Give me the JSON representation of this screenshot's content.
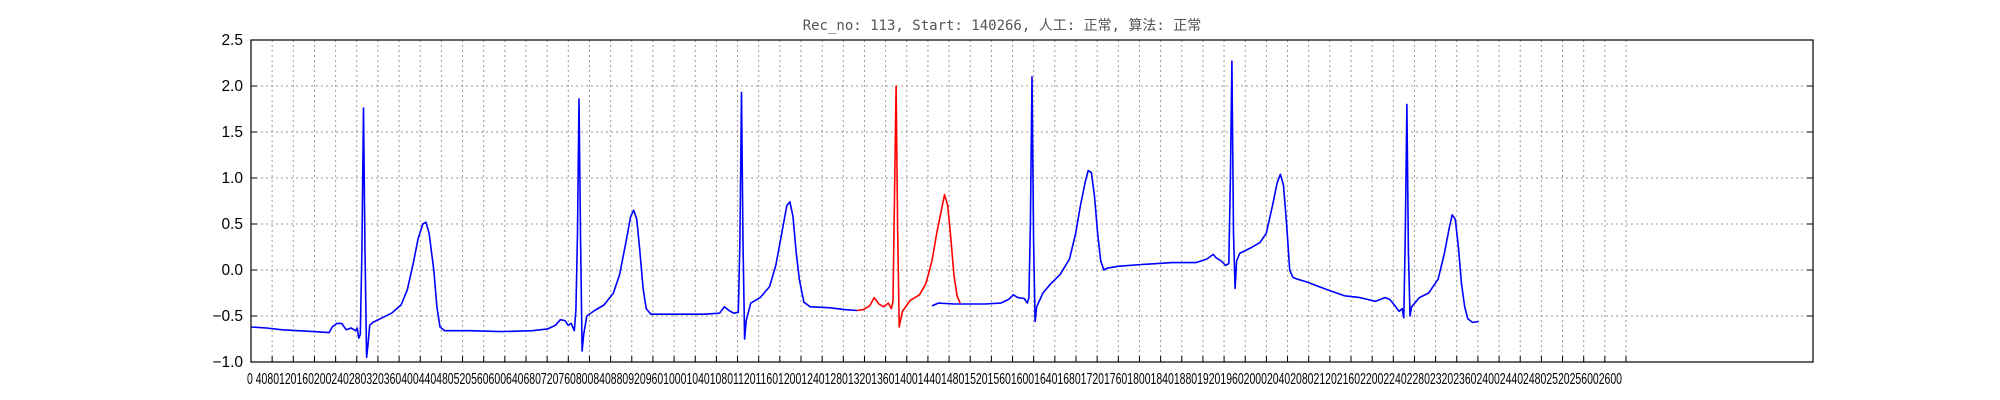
{
  "chart_data": {
    "type": "line",
    "title": "Rec_no: 113, Start: 140266, 人工: 正常, 算法: 正常",
    "xlabel": "",
    "ylabel": "",
    "xlim": [
      0,
      1000
    ],
    "ylim": [
      -1.0,
      2.5
    ],
    "grid": true,
    "y_ticks": [
      {
        "v": -1.0,
        "label": "−1.0"
      },
      {
        "v": -0.5,
        "label": "−0.5"
      },
      {
        "v": 0.0,
        "label": "0.0"
      },
      {
        "v": 0.5,
        "label": "0.5"
      },
      {
        "v": 1.0,
        "label": "1.0"
      },
      {
        "v": 1.5,
        "label": "1.5"
      },
      {
        "v": 2.0,
        "label": "2.0"
      },
      {
        "v": 2.5,
        "label": "2.5"
      }
    ],
    "x_ticks": [
      0,
      40,
      80,
      120,
      160,
      200,
      240,
      280,
      320,
      360,
      400,
      440,
      480,
      520,
      560,
      600,
      640,
      680,
      720,
      760,
      800,
      840,
      880,
      920,
      960,
      1000,
      1040,
      1080,
      1120,
      1160,
      1200,
      1240,
      1280,
      1320,
      1360,
      1400,
      1440,
      1480,
      1520,
      1560,
      1600,
      1640,
      1680,
      1720,
      1760,
      1800,
      1840,
      1880,
      1920,
      1960,
      2000,
      2040,
      2080,
      2120,
      2160,
      2200,
      2240,
      2280,
      2320,
      2360,
      2400,
      2440,
      2480,
      2520,
      2560,
      2600
    ],
    "x_tick_text": "0 4080120160200240280320360400440480520560600640680720760800840880920960100010401080112011601200124012801320136014001440148015201560160016401680172017601800184018801920196020002040208021202160220022402280232023602400244024802520256002600",
    "series": [
      {
        "color": "#0000ff",
        "segments": [
          [
            [
              0,
              -0.62
            ],
            [
              10,
              -0.63
            ],
            [
              20,
              -0.65
            ],
            [
              30,
              -0.66
            ],
            [
              40,
              -0.67
            ],
            [
              50,
              -0.68
            ],
            [
              52,
              -0.62
            ],
            [
              55,
              -0.58
            ],
            [
              58,
              -0.58
            ],
            [
              61,
              -0.65
            ],
            [
              64,
              -0.63
            ],
            [
              67,
              -0.66
            ],
            [
              68,
              -0.63
            ],
            [
              69,
              -0.74
            ],
            [
              70,
              -0.7
            ],
            [
              71,
              0.2
            ],
            [
              72,
              1.76
            ],
            [
              73,
              0.2
            ],
            [
              74,
              -0.95
            ],
            [
              75,
              -0.8
            ],
            [
              76,
              -0.6
            ],
            [
              78,
              -0.57
            ],
            [
              84,
              -0.52
            ],
            [
              90,
              -0.47
            ],
            [
              96,
              -0.38
            ],
            [
              100,
              -0.22
            ],
            [
              104,
              0.08
            ],
            [
              107,
              0.34
            ],
            [
              110,
              0.5
            ],
            [
              112,
              0.52
            ],
            [
              114,
              0.4
            ],
            [
              117,
              0.0
            ],
            [
              119,
              -0.4
            ],
            [
              121,
              -0.62
            ],
            [
              124,
              -0.66
            ],
            [
              140,
              -0.66
            ],
            [
              160,
              -0.67
            ],
            [
              180,
              -0.66
            ],
            [
              190,
              -0.64
            ],
            [
              195,
              -0.6
            ],
            [
              198,
              -0.54
            ],
            [
              201,
              -0.55
            ],
            [
              203,
              -0.6
            ],
            [
              205,
              -0.58
            ],
            [
              207,
              -0.66
            ],
            [
              208,
              -0.44
            ],
            [
              209,
              0.4
            ],
            [
              210,
              1.86
            ],
            [
              211,
              0.3
            ],
            [
              212,
              -0.88
            ],
            [
              213,
              -0.7
            ],
            [
              215,
              -0.5
            ],
            [
              220,
              -0.44
            ],
            [
              226,
              -0.38
            ],
            [
              232,
              -0.25
            ],
            [
              236,
              -0.05
            ],
            [
              240,
              0.3
            ],
            [
              243,
              0.58
            ],
            [
              245,
              0.65
            ],
            [
              247,
              0.55
            ],
            [
              249,
              0.2
            ],
            [
              251,
              -0.2
            ],
            [
              253,
              -0.42
            ],
            [
              256,
              -0.48
            ],
            [
              270,
              -0.48
            ],
            [
              290,
              -0.48
            ],
            [
              300,
              -0.47
            ],
            [
              303,
              -0.4
            ],
            [
              306,
              -0.44
            ],
            [
              309,
              -0.47
            ],
            [
              312,
              -0.46
            ],
            [
              313,
              0.3
            ],
            [
              314,
              1.93
            ],
            [
              315,
              0.3
            ],
            [
              316,
              -0.75
            ],
            [
              317,
              -0.55
            ],
            [
              320,
              -0.36
            ],
            [
              326,
              -0.3
            ],
            [
              332,
              -0.18
            ],
            [
              336,
              0.05
            ],
            [
              340,
              0.42
            ],
            [
              343,
              0.7
            ],
            [
              345,
              0.74
            ],
            [
              347,
              0.58
            ],
            [
              349,
              0.2
            ],
            [
              351,
              -0.1
            ],
            [
              354,
              -0.35
            ],
            [
              358,
              -0.4
            ],
            [
              370,
              -0.41
            ],
            [
              380,
              -0.43
            ],
            [
              388,
              -0.44
            ]
          ],
          [
            [
              436,
              -0.39
            ],
            [
              440,
              -0.36
            ],
            [
              450,
              -0.37
            ],
            [
              460,
              -0.37
            ],
            [
              470,
              -0.37
            ],
            [
              480,
              -0.36
            ],
            [
              485,
              -0.32
            ],
            [
              488,
              -0.27
            ],
            [
              491,
              -0.3
            ],
            [
              495,
              -0.31
            ],
            [
              497,
              -0.36
            ],
            [
              498,
              -0.3
            ],
            [
              499,
              0.5
            ],
            [
              500,
              2.1
            ],
            [
              501,
              0.3
            ],
            [
              502,
              -0.56
            ],
            [
              503,
              -0.4
            ],
            [
              507,
              -0.25
            ],
            [
              512,
              -0.15
            ],
            [
              518,
              -0.05
            ],
            [
              524,
              0.12
            ],
            [
              528,
              0.4
            ],
            [
              531,
              0.7
            ],
            [
              534,
              0.95
            ],
            [
              536,
              1.08
            ],
            [
              538,
              1.06
            ],
            [
              540,
              0.8
            ],
            [
              542,
              0.4
            ],
            [
              544,
              0.1
            ],
            [
              546,
              0.0
            ],
            [
              548,
              0.02
            ],
            [
              555,
              0.04
            ],
            [
              570,
              0.06
            ],
            [
              590,
              0.08
            ],
            [
              605,
              0.08
            ],
            [
              612,
              0.12
            ],
            [
              616,
              0.17
            ],
            [
              618,
              0.13
            ],
            [
              621,
              0.1
            ],
            [
              624,
              0.05
            ],
            [
              626,
              0.07
            ],
            [
              627,
              1.0
            ],
            [
              628,
              2.27
            ],
            [
              629,
              0.4
            ],
            [
              630,
              -0.2
            ],
            [
              631,
              0.1
            ],
            [
              633,
              0.18
            ],
            [
              640,
              0.24
            ],
            [
              646,
              0.3
            ],
            [
              650,
              0.4
            ],
            [
              654,
              0.7
            ],
            [
              657,
              0.95
            ],
            [
              659,
              1.04
            ],
            [
              661,
              0.92
            ],
            [
              663,
              0.5
            ],
            [
              665,
              0.0
            ],
            [
              667,
              -0.08
            ],
            [
              670,
              -0.1
            ],
            [
              676,
              -0.13
            ],
            [
              682,
              -0.17
            ],
            [
              690,
              -0.22
            ],
            [
              700,
              -0.28
            ],
            [
              710,
              -0.3
            ],
            [
              720,
              -0.34
            ],
            [
              726,
              -0.3
            ],
            [
              729,
              -0.32
            ],
            [
              732,
              -0.38
            ],
            [
              735,
              -0.45
            ],
            [
              737,
              -0.42
            ],
            [
              738,
              -0.52
            ],
            [
              739,
              0.4
            ],
            [
              740,
              1.8
            ],
            [
              741,
              0.2
            ],
            [
              742,
              -0.5
            ],
            [
              743,
              -0.4
            ],
            [
              748,
              -0.3
            ],
            [
              754,
              -0.25
            ],
            [
              760,
              -0.1
            ],
            [
              764,
              0.18
            ],
            [
              767,
              0.45
            ],
            [
              769,
              0.6
            ],
            [
              771,
              0.55
            ],
            [
              773,
              0.25
            ],
            [
              775,
              -0.15
            ],
            [
              777,
              -0.4
            ],
            [
              779,
              -0.53
            ],
            [
              782,
              -0.57
            ],
            [
              786,
              -0.56
            ]
          ]
        ]
      },
      {
        "color": "#ff0000",
        "segments": [
          [
            [
              388,
              -0.44
            ],
            [
              392,
              -0.43
            ],
            [
              396,
              -0.39
            ],
            [
              399,
              -0.3
            ],
            [
              402,
              -0.37
            ],
            [
              405,
              -0.4
            ],
            [
              408,
              -0.36
            ],
            [
              410,
              -0.42
            ],
            [
              411,
              -0.34
            ],
            [
              412,
              0.8
            ],
            [
              413,
              2.0
            ],
            [
              414,
              0.4
            ],
            [
              415,
              -0.62
            ],
            [
              417,
              -0.45
            ],
            [
              422,
              -0.33
            ],
            [
              428,
              -0.27
            ],
            [
              432,
              -0.15
            ],
            [
              436,
              0.1
            ],
            [
              439,
              0.4
            ],
            [
              442,
              0.65
            ],
            [
              444,
              0.82
            ],
            [
              446,
              0.7
            ],
            [
              448,
              0.35
            ],
            [
              450,
              -0.05
            ],
            [
              452,
              -0.28
            ],
            [
              454,
              -0.36
            ]
          ]
        ]
      }
    ]
  }
}
